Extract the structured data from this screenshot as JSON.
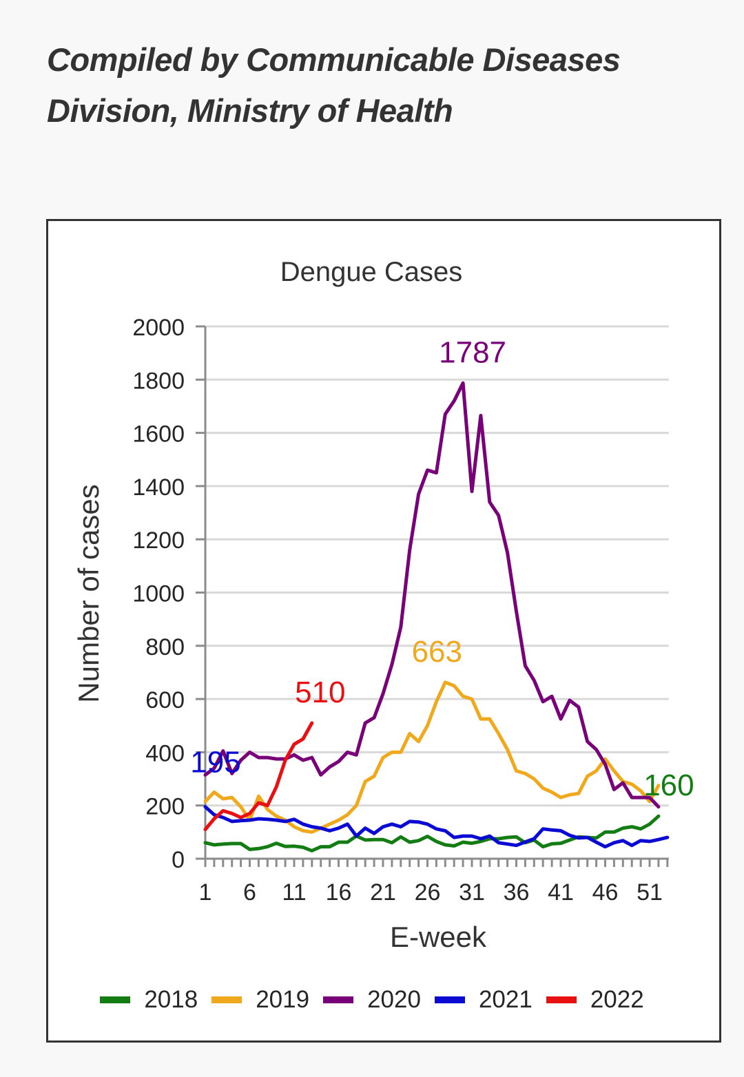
{
  "page": {
    "caption": "Compiled by Communicable Diseases Division, Ministry of Health"
  },
  "chart_data": {
    "type": "line",
    "title": "Dengue Cases",
    "xlabel": "E-week",
    "ylabel": "Number of cases",
    "xlim": [
      1,
      53
    ],
    "ylim": [
      0,
      2000
    ],
    "x_ticks": [
      "1",
      "6",
      "11",
      "16",
      "21",
      "26",
      "31",
      "36",
      "41",
      "46",
      "51"
    ],
    "y_ticks": [
      "0",
      "200",
      "400",
      "600",
      "800",
      "1000",
      "1200",
      "1400",
      "1600",
      "1800",
      "2000"
    ],
    "grid": true,
    "legend": "bottom",
    "series": [
      {
        "name": "2018",
        "color": "#137d13",
        "values": [
          60,
          52,
          55,
          57,
          57,
          35,
          38,
          45,
          58,
          46,
          47,
          43,
          30,
          45,
          45,
          62,
          62,
          85,
          70,
          72,
          72,
          60,
          82,
          62,
          68,
          84,
          65,
          52,
          48,
          62,
          58,
          65,
          75,
          75,
          80,
          82,
          60,
          70,
          45,
          56,
          58,
          70,
          82,
          80,
          78,
          100,
          100,
          115,
          120,
          112,
          130,
          160
        ]
      },
      {
        "name": "2019",
        "color": "#f0a81c",
        "values": [
          215,
          250,
          225,
          230,
          195,
          145,
          235,
          185,
          160,
          145,
          120,
          105,
          100,
          115,
          130,
          145,
          165,
          200,
          290,
          310,
          380,
          400,
          400,
          470,
          440,
          500,
          590,
          663,
          650,
          610,
          600,
          525,
          525,
          470,
          410,
          330,
          320,
          300,
          265,
          250,
          230,
          240,
          245,
          310,
          330,
          375,
          330,
          290,
          280,
          255,
          215,
          275
        ]
      },
      {
        "name": "2020",
        "color": "#780078",
        "values": [
          315,
          340,
          405,
          320,
          370,
          400,
          380,
          380,
          375,
          375,
          390,
          370,
          380,
          315,
          345,
          365,
          400,
          390,
          510,
          530,
          620,
          730,
          870,
          1160,
          1370,
          1460,
          1450,
          1670,
          1720,
          1787,
          1380,
          1665,
          1340,
          1290,
          1150,
          930,
          725,
          670,
          590,
          610,
          525,
          595,
          570,
          440,
          410,
          355,
          260,
          285,
          230,
          230,
          230,
          195
        ]
      },
      {
        "name": "2021",
        "color": "#0a0ad2",
        "values": [
          195,
          165,
          155,
          140,
          143,
          145,
          150,
          148,
          145,
          140,
          148,
          130,
          120,
          115,
          105,
          115,
          130,
          85,
          115,
          95,
          120,
          130,
          120,
          140,
          138,
          130,
          112,
          105,
          80,
          85,
          85,
          75,
          85,
          60,
          55,
          50,
          63,
          75,
          112,
          108,
          105,
          88,
          78,
          80,
          62,
          45,
          60,
          68,
          50,
          68,
          65,
          72,
          80
        ]
      },
      {
        "name": "2022",
        "color": "#e81010",
        "values": [
          110,
          150,
          180,
          170,
          155,
          170,
          210,
          200,
          270,
          370,
          430,
          450,
          510
        ]
      }
    ],
    "annotations": [
      {
        "text": "1787",
        "series": "2020",
        "week": 30
      },
      {
        "text": "663",
        "series": "2019",
        "week": 28
      },
      {
        "text": "510",
        "series": "2022",
        "week": 13
      },
      {
        "text": "195",
        "series": "2021",
        "week": 1
      },
      {
        "text": "160",
        "series": "2018",
        "week": 52
      }
    ]
  }
}
